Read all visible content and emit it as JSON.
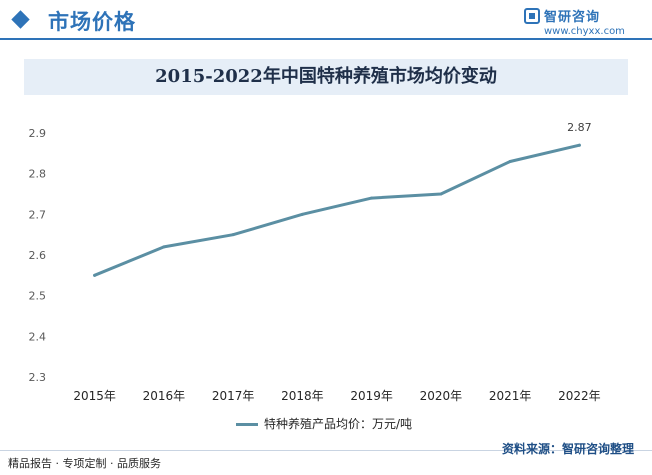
{
  "header": {
    "section_title": "市场价格",
    "logo_name": "智研咨询",
    "logo_url": "www.chyxx.com"
  },
  "footer": {
    "services": "精品报告 · 专项定制 · 品质服务",
    "source": "资料来源：智研咨询整理"
  },
  "colors": {
    "line": "#5b8fa3",
    "accent": "#2e73b8"
  },
  "chart_data": {
    "type": "line",
    "title": "2015-2022年中国特种养殖市场均价变动",
    "categories": [
      "2015年",
      "2016年",
      "2017年",
      "2018年",
      "2019年",
      "2020年",
      "2021年",
      "2022年"
    ],
    "series": [
      {
        "name": "特种养殖产品均价：万元/吨",
        "values": [
          2.55,
          2.62,
          2.65,
          2.7,
          2.74,
          2.75,
          2.83,
          2.87
        ]
      }
    ],
    "data_labels": [
      {
        "index": 7,
        "text": "2.87"
      }
    ],
    "y_ticks": [
      "2.3",
      "2.4",
      "2.5",
      "2.6",
      "2.7",
      "2.8",
      "2.9"
    ],
    "ylim": [
      2.3,
      2.9
    ],
    "grid": false,
    "legend_position": "bottom"
  }
}
